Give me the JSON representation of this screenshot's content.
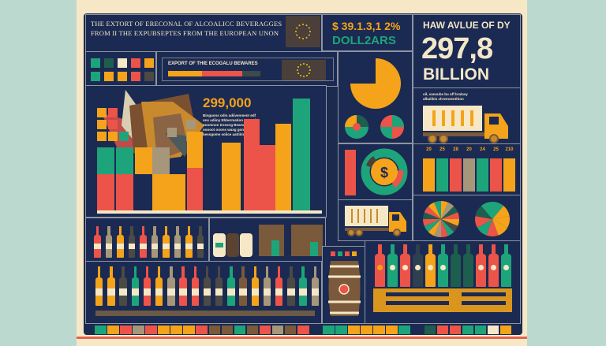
{
  "title": {
    "line1": "THE EXTORT OF ERECONAL OF ALCOALICC BEVERAGGES",
    "line2": "FROM II THE EXPUBSEPTES FROM THE EUROPEAN UNON"
  },
  "dollar_panel": {
    "amount": "$ 39.1.3,1 2%",
    "unit": "DOLL2ARS"
  },
  "value_panel": {
    "heading": "HAW AVLUE OF DY",
    "value": "297,8",
    "unit": "BILLION"
  },
  "export_panel": {
    "label": "EXPORT OF THIE ECOGALU BEWARES"
  },
  "main_chart": {
    "figure": "299,000",
    "body": [
      "Binguons odin adiivenment edf",
      "ons adiiny Ebbermation ocouniu",
      "ooomnon Irossng Bearwoe ohg",
      "ooooot ooons waxg gon erroat",
      "bessgome solice aattiition."
    ]
  },
  "truck_panel": {
    "text": [
      "oil, vansubs bu off bralavy",
      "afbalibis chremsenthion"
    ]
  },
  "bar_panel": {
    "labels": [
      "20",
      "25",
      "28",
      "20",
      "24",
      "25",
      "210"
    ],
    "colors": [
      "#f5a31a",
      "#1ea47a",
      "#ec5349",
      "#a6977a",
      "#1ea47a",
      "#ec5349",
      "#f5a31a"
    ]
  },
  "icons": [
    "eu-flag-icon",
    "dollar-icon",
    "truck-icon",
    "barrel-icon",
    "bottle-icon",
    "leaf-icon",
    "pie-icon"
  ],
  "palette": {
    "navy": "#1b2a52",
    "cream": "#f6e8c6",
    "green": "#1ea47a",
    "orange": "#f5a31a",
    "red": "#ec5349",
    "brown": "#7a5a3a"
  }
}
